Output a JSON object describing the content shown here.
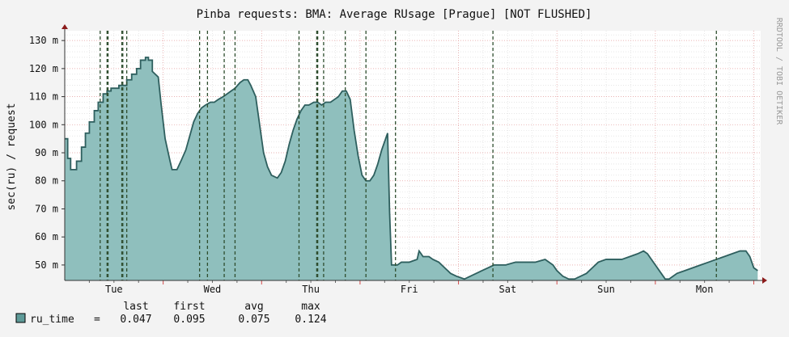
{
  "chart_data": {
    "type": "area",
    "title": "Pinba requests: BMA: Average RUsage [Prague] [NOT FLUSHED]",
    "ylabel": "sec(ru) / request",
    "watermark": "RRDTOOL / TOBI OETIKER",
    "ylim": [
      0.0445,
      0.1335
    ],
    "y_ticks": [
      {
        "v": 0.05,
        "label": "50 m"
      },
      {
        "v": 0.06,
        "label": "60 m"
      },
      {
        "v": 0.07,
        "label": "70 m"
      },
      {
        "v": 0.08,
        "label": "80 m"
      },
      {
        "v": 0.09,
        "label": "90 m"
      },
      {
        "v": 0.1,
        "label": "100 m"
      },
      {
        "v": 0.11,
        "label": "110 m"
      },
      {
        "v": 0.12,
        "label": "120 m"
      },
      {
        "v": 0.13,
        "label": "130 m"
      }
    ],
    "xlim": [
      0,
      7.07
    ],
    "x_day_labels": [
      {
        "x": 0.5,
        "label": "Tue"
      },
      {
        "x": 1.5,
        "label": "Wed"
      },
      {
        "x": 2.5,
        "label": "Thu"
      },
      {
        "x": 3.5,
        "label": "Fri"
      },
      {
        "x": 4.5,
        "label": "Sat"
      },
      {
        "x": 5.5,
        "label": "Sun"
      },
      {
        "x": 6.5,
        "label": "Mon"
      }
    ],
    "events_x": [
      0.36,
      0.43,
      0.44,
      0.58,
      0.59,
      0.63,
      1.37,
      1.45,
      1.62,
      1.73,
      2.38,
      2.56,
      2.57,
      2.63,
      2.85,
      3.06,
      3.36,
      4.35,
      6.62
    ],
    "series": [
      {
        "name": "ru_time",
        "color": "#8fbfbd",
        "line_color": "#2e5f5e",
        "points": [
          [
            0.0,
            0.095
          ],
          [
            0.03,
            0.095
          ],
          [
            0.03,
            0.088
          ],
          [
            0.06,
            0.088
          ],
          [
            0.06,
            0.084
          ],
          [
            0.12,
            0.084
          ],
          [
            0.12,
            0.087
          ],
          [
            0.17,
            0.087
          ],
          [
            0.17,
            0.092
          ],
          [
            0.21,
            0.092
          ],
          [
            0.21,
            0.097
          ],
          [
            0.25,
            0.097
          ],
          [
            0.25,
            0.101
          ],
          [
            0.3,
            0.101
          ],
          [
            0.3,
            0.105
          ],
          [
            0.34,
            0.105
          ],
          [
            0.34,
            0.108
          ],
          [
            0.39,
            0.108
          ],
          [
            0.39,
            0.111
          ],
          [
            0.43,
            0.111
          ],
          [
            0.43,
            0.112
          ],
          [
            0.47,
            0.112
          ],
          [
            0.47,
            0.113
          ],
          [
            0.55,
            0.113
          ],
          [
            0.55,
            0.114
          ],
          [
            0.63,
            0.114
          ],
          [
            0.63,
            0.116
          ],
          [
            0.68,
            0.116
          ],
          [
            0.68,
            0.118
          ],
          [
            0.73,
            0.118
          ],
          [
            0.73,
            0.12
          ],
          [
            0.77,
            0.12
          ],
          [
            0.77,
            0.123
          ],
          [
            0.82,
            0.123
          ],
          [
            0.82,
            0.124
          ],
          [
            0.85,
            0.124
          ],
          [
            0.85,
            0.123
          ],
          [
            0.89,
            0.123
          ],
          [
            0.89,
            0.119
          ],
          [
            0.95,
            0.117
          ],
          [
            0.98,
            0.107
          ],
          [
            1.02,
            0.095
          ],
          [
            1.07,
            0.087
          ],
          [
            1.09,
            0.084
          ],
          [
            1.14,
            0.084
          ],
          [
            1.18,
            0.087
          ],
          [
            1.23,
            0.091
          ],
          [
            1.27,
            0.096
          ],
          [
            1.31,
            0.101
          ],
          [
            1.35,
            0.104
          ],
          [
            1.39,
            0.106
          ],
          [
            1.43,
            0.107
          ],
          [
            1.48,
            0.108
          ],
          [
            1.52,
            0.108
          ],
          [
            1.56,
            0.109
          ],
          [
            1.61,
            0.11
          ],
          [
            1.65,
            0.111
          ],
          [
            1.69,
            0.112
          ],
          [
            1.73,
            0.113
          ],
          [
            1.78,
            0.115
          ],
          [
            1.82,
            0.116
          ],
          [
            1.86,
            0.116
          ],
          [
            1.89,
            0.114
          ],
          [
            1.94,
            0.11
          ],
          [
            1.98,
            0.1
          ],
          [
            2.02,
            0.09
          ],
          [
            2.06,
            0.085
          ],
          [
            2.1,
            0.082
          ],
          [
            2.16,
            0.081
          ],
          [
            2.2,
            0.083
          ],
          [
            2.24,
            0.087
          ],
          [
            2.28,
            0.093
          ],
          [
            2.32,
            0.098
          ],
          [
            2.36,
            0.102
          ],
          [
            2.4,
            0.105
          ],
          [
            2.44,
            0.107
          ],
          [
            2.48,
            0.107
          ],
          [
            2.53,
            0.108
          ],
          [
            2.57,
            0.108
          ],
          [
            2.61,
            0.107
          ],
          [
            2.65,
            0.108
          ],
          [
            2.7,
            0.108
          ],
          [
            2.74,
            0.109
          ],
          [
            2.78,
            0.11
          ],
          [
            2.82,
            0.112
          ],
          [
            2.86,
            0.112
          ],
          [
            2.9,
            0.109
          ],
          [
            2.94,
            0.098
          ],
          [
            2.98,
            0.089
          ],
          [
            3.02,
            0.082
          ],
          [
            3.06,
            0.08
          ],
          [
            3.1,
            0.08
          ],
          [
            3.14,
            0.082
          ],
          [
            3.18,
            0.086
          ],
          [
            3.22,
            0.091
          ],
          [
            3.26,
            0.095
          ],
          [
            3.28,
            0.097
          ],
          [
            3.3,
            0.069
          ],
          [
            3.32,
            0.05
          ],
          [
            3.38,
            0.05
          ],
          [
            3.42,
            0.051
          ],
          [
            3.5,
            0.051
          ],
          [
            3.58,
            0.052
          ],
          [
            3.6,
            0.055
          ],
          [
            3.64,
            0.053
          ],
          [
            3.7,
            0.053
          ],
          [
            3.74,
            0.052
          ],
          [
            3.8,
            0.051
          ],
          [
            3.86,
            0.049
          ],
          [
            3.92,
            0.047
          ],
          [
            3.98,
            0.046
          ],
          [
            4.06,
            0.045
          ],
          [
            4.12,
            0.046
          ],
          [
            4.18,
            0.047
          ],
          [
            4.24,
            0.048
          ],
          [
            4.3,
            0.049
          ],
          [
            4.36,
            0.05
          ],
          [
            4.48,
            0.05
          ],
          [
            4.58,
            0.051
          ],
          [
            4.68,
            0.051
          ],
          [
            4.78,
            0.051
          ],
          [
            4.88,
            0.052
          ],
          [
            4.96,
            0.05
          ],
          [
            5.0,
            0.048
          ],
          [
            5.06,
            0.046
          ],
          [
            5.12,
            0.045
          ],
          [
            5.18,
            0.045
          ],
          [
            5.24,
            0.046
          ],
          [
            5.3,
            0.047
          ],
          [
            5.36,
            0.049
          ],
          [
            5.42,
            0.051
          ],
          [
            5.5,
            0.052
          ],
          [
            5.58,
            0.052
          ],
          [
            5.66,
            0.052
          ],
          [
            5.74,
            0.053
          ],
          [
            5.82,
            0.054
          ],
          [
            5.88,
            0.055
          ],
          [
            5.92,
            0.054
          ],
          [
            5.96,
            0.052
          ],
          [
            6.0,
            0.05
          ],
          [
            6.06,
            0.047
          ],
          [
            6.1,
            0.045
          ],
          [
            6.14,
            0.045
          ],
          [
            6.18,
            0.046
          ],
          [
            6.22,
            0.047
          ],
          [
            6.3,
            0.048
          ],
          [
            6.38,
            0.049
          ],
          [
            6.46,
            0.05
          ],
          [
            6.54,
            0.051
          ],
          [
            6.62,
            0.052
          ],
          [
            6.7,
            0.053
          ],
          [
            6.78,
            0.054
          ],
          [
            6.86,
            0.055
          ],
          [
            6.92,
            0.055
          ],
          [
            6.96,
            0.053
          ],
          [
            7.0,
            0.049
          ],
          [
            7.04,
            0.048
          ]
        ]
      }
    ],
    "legend": {
      "headers": [
        "last",
        "first",
        "avg",
        "max"
      ],
      "rows": [
        {
          "name": "ru_time",
          "equals": "=",
          "color": "#5e9a98",
          "last": "0.047",
          "first": "0.095",
          "avg": "0.075",
          "max": "0.124"
        }
      ]
    }
  }
}
